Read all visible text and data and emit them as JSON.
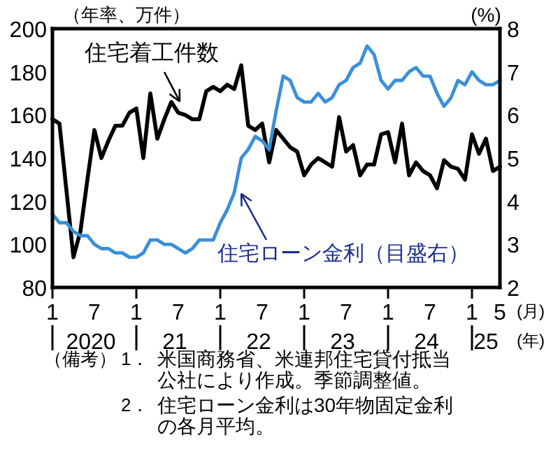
{
  "chart_data": {
    "type": "line",
    "ylabel": "（年率、万件）",
    "y2label": "(%)",
    "x": [
      "2020-01",
      "2020-02",
      "2020-03",
      "2020-04",
      "2020-05",
      "2020-06",
      "2020-07",
      "2020-08",
      "2020-09",
      "2020-10",
      "2020-11",
      "2020-12",
      "2021-01",
      "2021-02",
      "2021-03",
      "2021-04",
      "2021-05",
      "2021-06",
      "2021-07",
      "2021-08",
      "2021-09",
      "2021-10",
      "2021-11",
      "2021-12",
      "2022-01",
      "2022-02",
      "2022-03",
      "2022-04",
      "2022-05",
      "2022-06",
      "2022-07",
      "2022-08",
      "2022-09",
      "2022-10",
      "2022-11",
      "2022-12",
      "2023-01",
      "2023-02",
      "2023-03",
      "2023-04",
      "2023-05",
      "2023-06",
      "2023-07",
      "2023-08",
      "2023-09",
      "2023-10",
      "2023-11",
      "2023-12",
      "2024-01",
      "2024-02",
      "2024-03",
      "2024-04",
      "2024-05",
      "2024-06",
      "2024-07",
      "2024-08",
      "2024-09",
      "2024-10",
      "2024-11",
      "2024-12",
      "2025-01",
      "2025-02",
      "2025-03",
      "2025-04",
      "2025-05"
    ],
    "series": [
      {
        "name": "住宅着工件数",
        "color": "#000000",
        "values": [
          158,
          156,
          125,
          94,
          106,
          130,
          153,
          140,
          148,
          155,
          155,
          161,
          163,
          140,
          170,
          149,
          158,
          166,
          161,
          160,
          158,
          158,
          171,
          173,
          171,
          174,
          172,
          183,
          155,
          153,
          156,
          138,
          153,
          149,
          145,
          143,
          132,
          137,
          140,
          138,
          136,
          159,
          143,
          146,
          132,
          137,
          137,
          151,
          152,
          138,
          156,
          132,
          138,
          134,
          132,
          126,
          139,
          136,
          135,
          130,
          151,
          142,
          149,
          134,
          136
        ]
      },
      {
        "name": "住宅ローン金利（目盛右）",
        "color": "#3a8fd8",
        "axis": "y2",
        "values": [
          3.7,
          3.5,
          3.5,
          3.3,
          3.2,
          3.2,
          3.0,
          2.9,
          2.9,
          2.8,
          2.8,
          2.7,
          2.7,
          2.8,
          3.1,
          3.1,
          3.0,
          3.0,
          2.9,
          2.8,
          2.9,
          3.1,
          3.1,
          3.1,
          3.5,
          3.8,
          4.2,
          5.0,
          5.2,
          5.5,
          5.4,
          5.2,
          6.1,
          6.9,
          6.8,
          6.4,
          6.3,
          6.3,
          6.5,
          6.3,
          6.4,
          6.7,
          6.8,
          7.1,
          7.2,
          7.6,
          7.4,
          6.8,
          6.6,
          6.8,
          6.8,
          7.0,
          7.1,
          6.9,
          6.9,
          6.5,
          6.2,
          6.4,
          6.8,
          6.7,
          7.0,
          6.8,
          6.7,
          6.7,
          6.8
        ]
      }
    ],
    "xlim": [
      "2020-01",
      "2025-05"
    ],
    "xticks": [
      {
        "value": "2020-01",
        "label": "1"
      },
      {
        "value": "2020-07",
        "label": "7"
      },
      {
        "value": "2021-01",
        "label": "1"
      },
      {
        "value": "2021-07",
        "label": "7"
      },
      {
        "value": "2022-01",
        "label": "1"
      },
      {
        "value": "2022-07",
        "label": "7"
      },
      {
        "value": "2023-01",
        "label": "1"
      },
      {
        "value": "2023-07",
        "label": "7"
      },
      {
        "value": "2024-01",
        "label": "1"
      },
      {
        "value": "2024-07",
        "label": "7"
      },
      {
        "value": "2025-01",
        "label": "1"
      },
      {
        "value": "2025-05",
        "label": "5"
      }
    ],
    "ylim": [
      80,
      200
    ],
    "yticks": [
      80,
      100,
      120,
      140,
      160,
      180,
      200
    ],
    "y2lim": [
      2,
      8
    ],
    "y2ticks": [
      2,
      3,
      4,
      5,
      6,
      7,
      8
    ],
    "legend": false,
    "annotations": [
      "2020",
      "21",
      "22",
      "23",
      "24",
      "25",
      "(月)",
      "(年)",
      "（備考）",
      "1．米国商務省、米連邦住宅貸付抵当公社により作成。季節調整値。",
      "2．住宅ローン金利は30年物固定金利の各月平均。"
    ]
  }
}
